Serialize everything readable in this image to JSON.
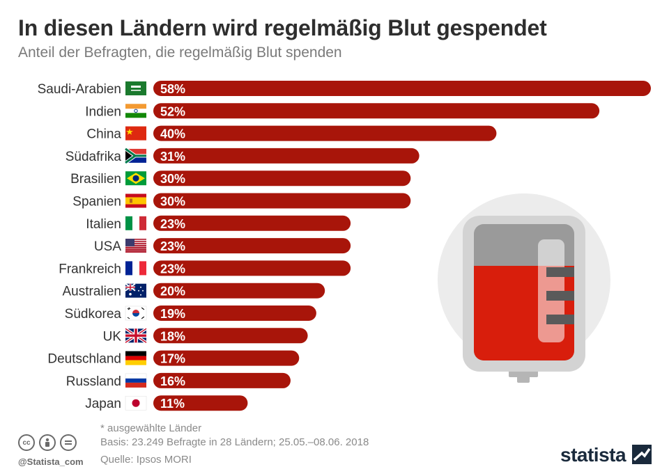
{
  "header": {
    "title": "In diesen Ländern wird regelmäßig Blut gespendet",
    "subtitle": "Anteil der Befragten, die regelmäßig Blut spenden"
  },
  "chart_data": {
    "type": "bar",
    "orientation": "horizontal",
    "categories": [
      "Saudi-Arabien",
      "Indien",
      "China",
      "Südafrika",
      "Brasilien",
      "Spanien",
      "Italien",
      "USA",
      "Frankreich",
      "Australien",
      "Südkorea",
      "UK",
      "Deutschland",
      "Russland",
      "Japan"
    ],
    "values": [
      58,
      52,
      40,
      31,
      30,
      30,
      23,
      23,
      23,
      20,
      19,
      18,
      17,
      16,
      11
    ],
    "value_labels": [
      "58%",
      "52%",
      "40%",
      "31%",
      "30%",
      "30%",
      "23%",
      "23%",
      "23%",
      "20%",
      "19%",
      "18%",
      "17%",
      "16%",
      "11%"
    ],
    "unit": "%",
    "xlim": [
      0,
      58
    ],
    "bar_color": "#a8150a",
    "grid": false,
    "legend": "none"
  },
  "flags": [
    "saudi-arabia-flag-icon",
    "india-flag-icon",
    "china-flag-icon",
    "south-africa-flag-icon",
    "brazil-flag-icon",
    "spain-flag-icon",
    "italy-flag-icon",
    "usa-flag-icon",
    "france-flag-icon",
    "australia-flag-icon",
    "south-korea-flag-icon",
    "uk-flag-icon",
    "germany-flag-icon",
    "russia-flag-icon",
    "japan-flag-icon"
  ],
  "illustration": "blood-bag-icon",
  "footer": {
    "note": "* ausgewählte Länder",
    "basis": "Basis: 23.249 Befragte in 28 Ländern; 25.05.–08.06. 2018",
    "source": "Quelle: Ipsos MORI",
    "handle": "@Statista_com",
    "brand": "statista",
    "license_icons": [
      "cc-icon",
      "attribution-icon",
      "no-derivatives-icon"
    ]
  }
}
